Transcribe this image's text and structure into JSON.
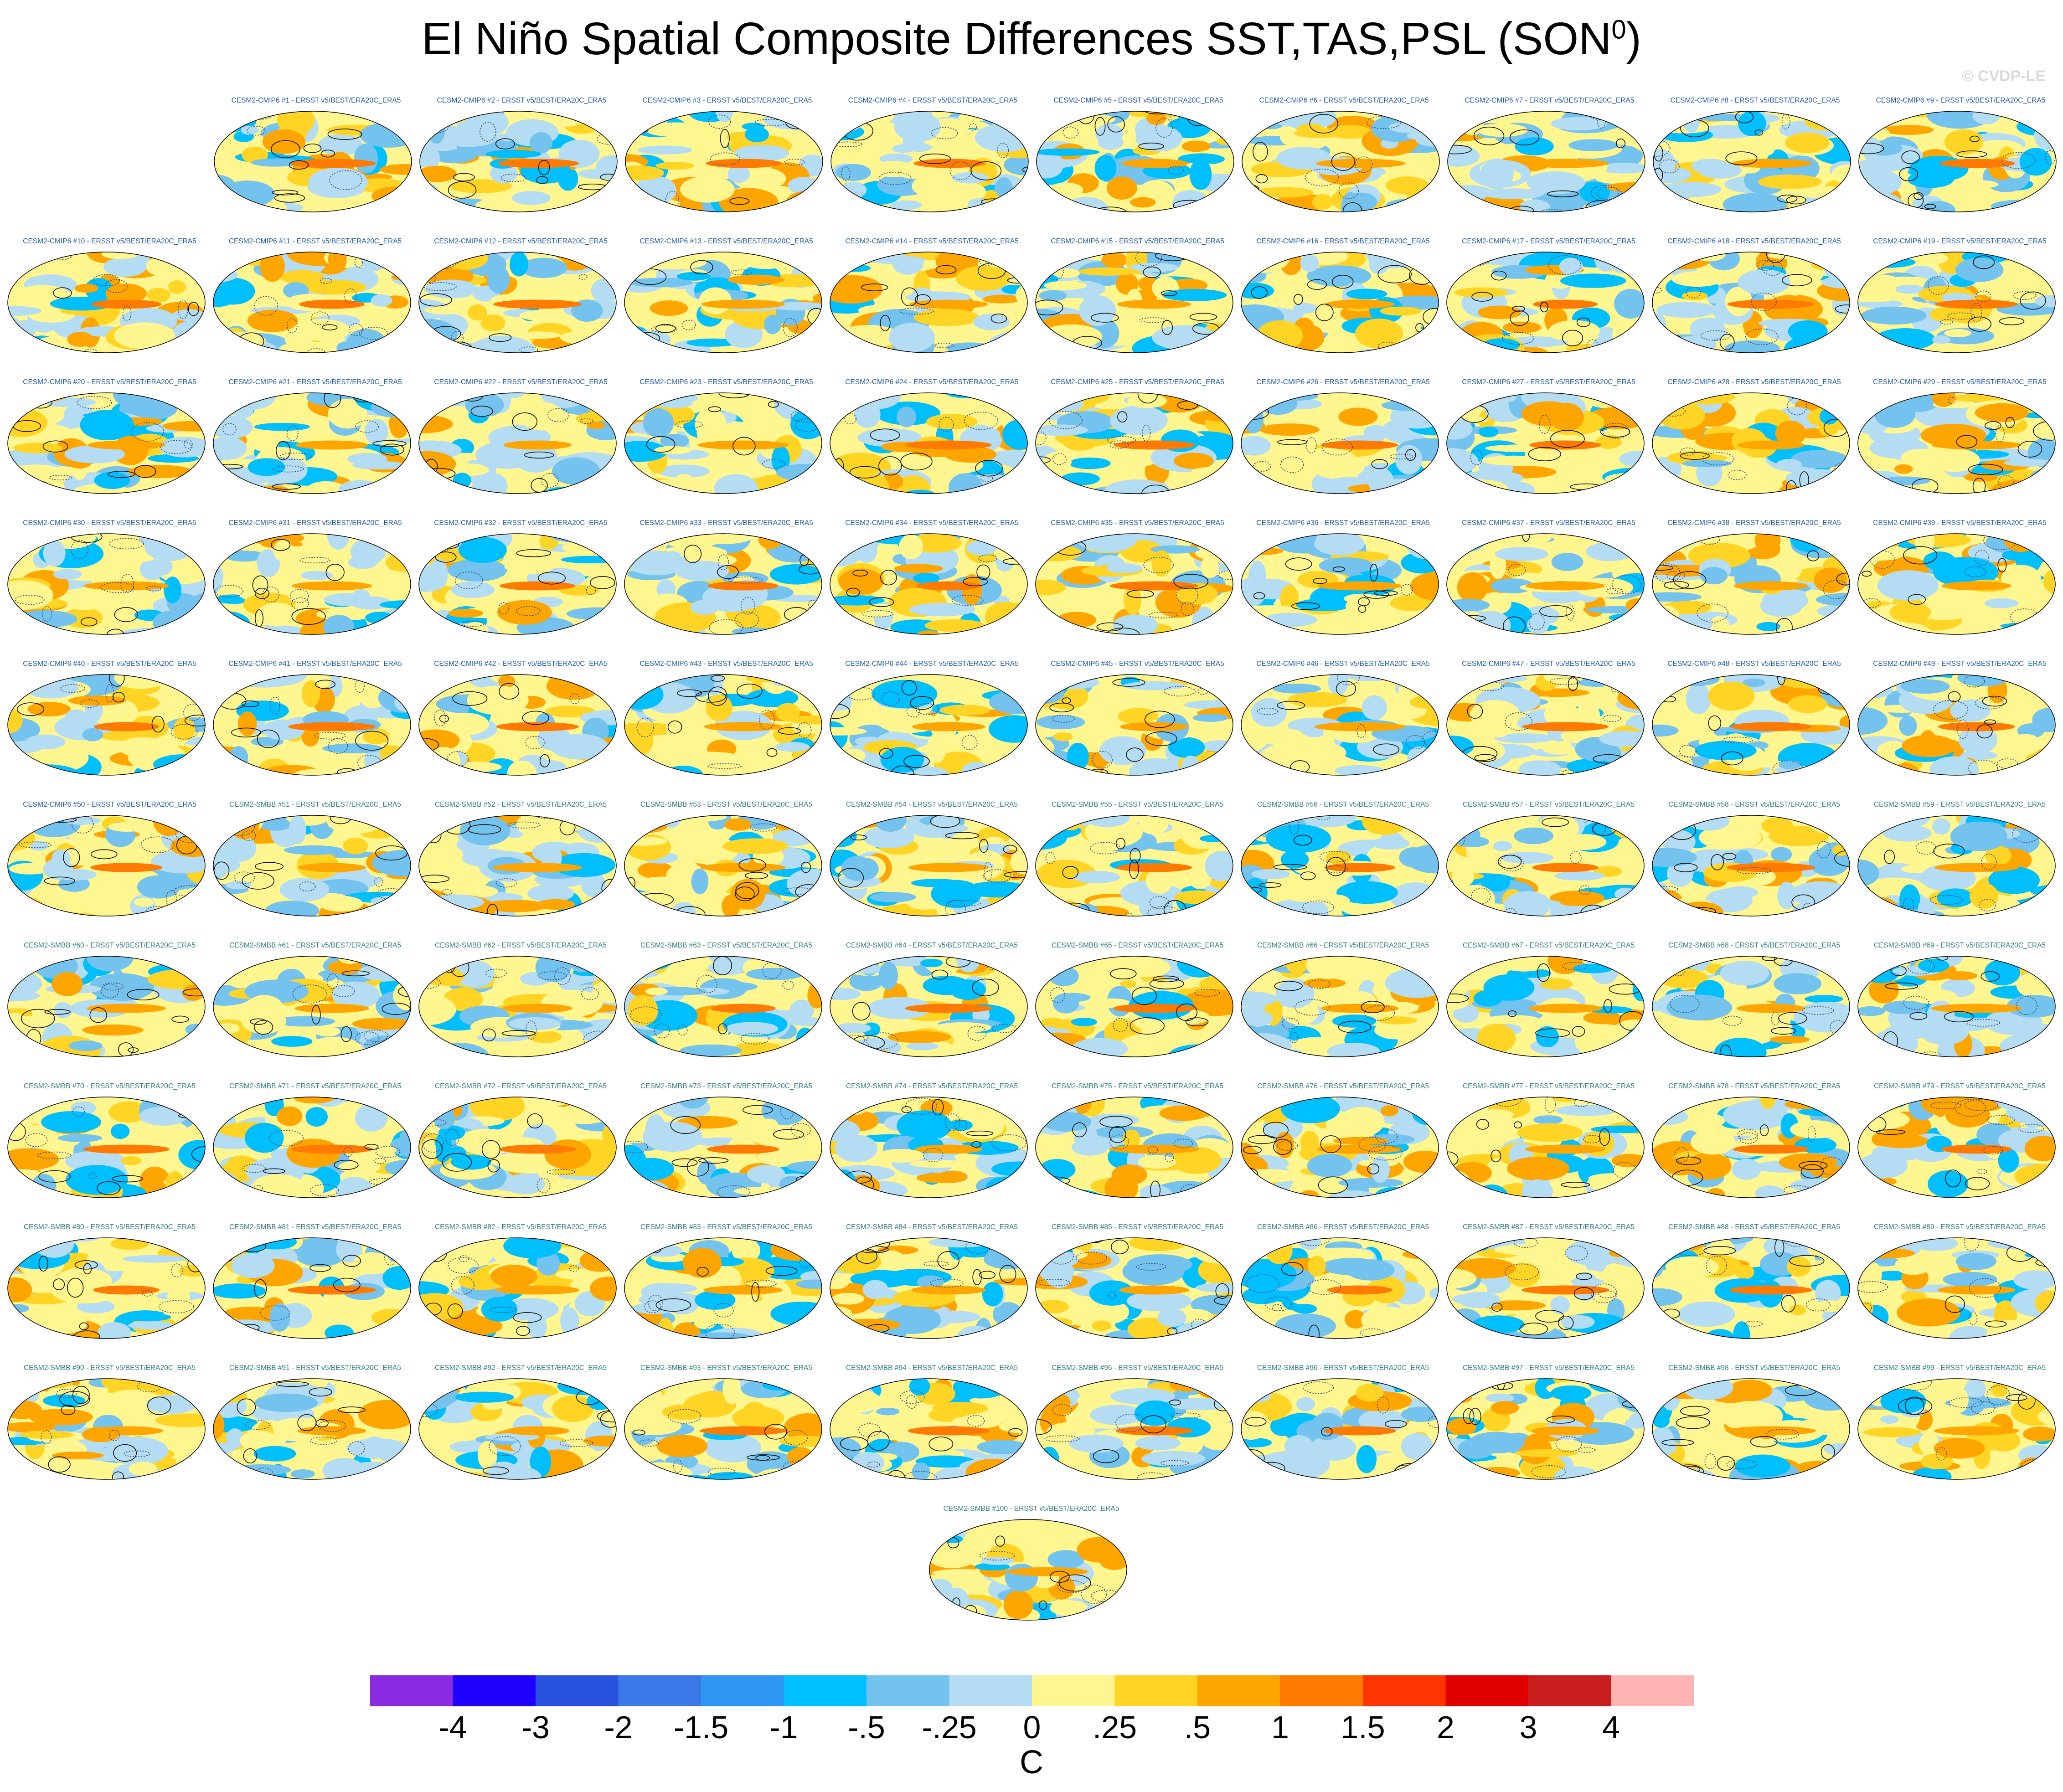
{
  "title": "El Niño Spatial Composite Differences SST,TAS,PSL (SON",
  "title_superscript": "0",
  "title_suffix": ")",
  "watermark": "© CVDP-LE",
  "panel_title_colors": {
    "CESM2-CMIP6": "#1f5aa8",
    "CESM2-SMBB": "#2f7d7d"
  },
  "panel_titles": [
    "CESM2-CMIP6 #1 - ERSST v5/BEST/ERA20C_ERA5",
    "CESM2-CMIP6 #2 - ERSST v5/BEST/ERA20C_ERA5",
    "CESM2-CMIP6 #3 - ERSST v5/BEST/ERA20C_ERA5",
    "CESM2-CMIP6 #4 - ERSST v5/BEST/ERA20C_ERA5",
    "CESM2-CMIP6 #5 - ERSST v5/BEST/ERA20C_ERA5",
    "CESM2-CMIP6 #6 - ERSST v5/BEST/ERA20C_ERA5",
    "CESM2-CMIP6 #7 - ERSST v5/BEST/ERA20C_ERA5",
    "CESM2-CMIP6 #8 - ERSST v5/BEST/ERA20C_ERA5",
    "CESM2-CMIP6 #9 - ERSST v5/BEST/ERA20C_ERA5",
    "CESM2-CMIP6 #10 - ERSST v5/BEST/ERA20C_ERA5",
    "CESM2-CMIP6 #11 - ERSST v5/BEST/ERA20C_ERA5",
    "CESM2-CMIP6 #12 - ERSST v5/BEST/ERA20C_ERA5",
    "CESM2-CMIP6 #13 - ERSST v5/BEST/ERA20C_ERA5",
    "CESM2-CMIP6 #14 - ERSST v5/BEST/ERA20C_ERA5",
    "CESM2-CMIP6 #15 - ERSST v5/BEST/ERA20C_ERA5",
    "CESM2-CMIP6 #16 - ERSST v5/BEST/ERA20C_ERA5",
    "CESM2-CMIP6 #17 - ERSST v5/BEST/ERA20C_ERA5",
    "CESM2-CMIP6 #18 - ERSST v5/BEST/ERA20C_ERA5",
    "CESM2-CMIP6 #19 - ERSST v5/BEST/ERA20C_ERA5",
    "CESM2-CMIP6 #20 - ERSST v5/BEST/ERA20C_ERA5",
    "CESM2-CMIP6 #21 - ERSST v5/BEST/ERA20C_ERA5",
    "CESM2-CMIP6 #22 - ERSST v5/BEST/ERA20C_ERA5",
    "CESM2-CMIP6 #23 - ERSST v5/BEST/ERA20C_ERA5",
    "CESM2-CMIP6 #24 - ERSST v5/BEST/ERA20C_ERA5",
    "CESM2-CMIP6 #25 - ERSST v5/BEST/ERA20C_ERA5",
    "CESM2-CMIP6 #26 - ERSST v5/BEST/ERA20C_ERA5",
    "CESM2-CMIP6 #27 - ERSST v5/BEST/ERA20C_ERA5",
    "CESM2-CMIP6 #28 - ERSST v5/BEST/ERA20C_ERA5",
    "CESM2-CMIP6 #29 - ERSST v5/BEST/ERA20C_ERA5",
    "CESM2-CMIP6 #30 - ERSST v5/BEST/ERA20C_ERA5",
    "CESM2-CMIP6 #31 - ERSST v5/BEST/ERA20C_ERA5",
    "CESM2-CMIP6 #32 - ERSST v5/BEST/ERA20C_ERA5",
    "CESM2-CMIP6 #33 - ERSST v5/BEST/ERA20C_ERA5",
    "CESM2-CMIP6 #34 - ERSST v5/BEST/ERA20C_ERA5",
    "CESM2-CMIP6 #35 - ERSST v5/BEST/ERA20C_ERA5",
    "CESM2-CMIP6 #36 - ERSST v5/BEST/ERA20C_ERA5",
    "CESM2-CMIP6 #37 - ERSST v5/BEST/ERA20C_ERA5",
    "CESM2-CMIP6 #38 - ERSST v5/BEST/ERA20C_ERA5",
    "CESM2-CMIP6 #39 - ERSST v5/BEST/ERA20C_ERA5",
    "CESM2-CMIP6 #40 - ERSST v5/BEST/ERA20C_ERA5",
    "CESM2-CMIP6 #41 - ERSST v5/BEST/ERA20C_ERA5",
    "CESM2-CMIP6 #42 - ERSST v5/BEST/ERA20C_ERA5",
    "CESM2-CMIP6 #43 - ERSST v5/BEST/ERA20C_ERA5",
    "CESM2-CMIP6 #44 - ERSST v5/BEST/ERA20C_ERA5",
    "CESM2-CMIP6 #45 - ERSST v5/BEST/ERA20C_ERA5",
    "CESM2-CMIP6 #46 - ERSST v5/BEST/ERA20C_ERA5",
    "CESM2-CMIP6 #47 - ERSST v5/BEST/ERA20C_ERA5",
    "CESM2-CMIP6 #48 - ERSST v5/BEST/ERA20C_ERA5",
    "CESM2-CMIP6 #49 - ERSST v5/BEST/ERA20C_ERA5",
    "CESM2-CMIP6 #50 - ERSST v5/BEST/ERA20C_ERA5",
    "CESM2-SMBB #51 - ERSST v5/BEST/ERA20C_ERA5",
    "CESM2-SMBB #52 - ERSST v5/BEST/ERA20C_ERA5",
    "CESM2-SMBB #53 - ERSST v5/BEST/ERA20C_ERA5",
    "CESM2-SMBB #54 - ERSST v5/BEST/ERA20C_ERA5",
    "CESM2-SMBB #55 - ERSST v5/BEST/ERA20C_ERA5",
    "CESM2-SMBB #56 - ERSST v5/BEST/ERA20C_ERA5",
    "CESM2-SMBB #57 - ERSST v5/BEST/ERA20C_ERA5",
    "CESM2-SMBB #58 - ERSST v5/BEST/ERA20C_ERA5",
    "CESM2-SMBB #59 - ERSST v5/BEST/ERA20C_ERA5",
    "CESM2-SMBB #60 - ERSST v5/BEST/ERA20C_ERA5",
    "CESM2-SMBB #61 - ERSST v5/BEST/ERA20C_ERA5",
    "CESM2-SMBB #62 - ERSST v5/BEST/ERA20C_ERA5",
    "CESM2-SMBB #63 - ERSST v5/BEST/ERA20C_ERA5",
    "CESM2-SMBB #64 - ERSST v5/BEST/ERA20C_ERA5",
    "CESM2-SMBB #65 - ERSST v5/BEST/ERA20C_ERA5",
    "CESM2-SMBB #66 - ERSST v5/BEST/ERA20C_ERA5",
    "CESM2-SMBB #67 - ERSST v5/BEST/ERA20C_ERA5",
    "CESM2-SMBB #68 - ERSST v5/BEST/ERA20C_ERA5",
    "CESM2-SMBB #69 - ERSST v5/BEST/ERA20C_ERA5",
    "CESM2-SMBB #70 - ERSST v5/BEST/ERA20C_ERA5",
    "CESM2-SMBB #71 - ERSST v5/BEST/ERA20C_ERA5",
    "CESM2-SMBB #72 - ERSST v5/BEST/ERA20C_ERA5",
    "CESM2-SMBB #73 - ERSST v5/BEST/ERA20C_ERA5",
    "CESM2-SMBB #74 - ERSST v5/BEST/ERA20C_ERA5",
    "CESM2-SMBB #75 - ERSST v5/BEST/ERA20C_ERA5",
    "CESM2-SMBB #76 - ERSST v5/BEST/ERA20C_ERA5",
    "CESM2-SMBB #77 - ERSST v5/BEST/ERA20C_ERA5",
    "CESM2-SMBB #78 - ERSST v5/BEST/ERA20C_ERA5",
    "CESM2-SMBB #79 - ERSST v5/BEST/ERA20C_ERA5",
    "CESM2-SMBB #80 - ERSST v5/BEST/ERA20C_ERA5",
    "CESM2-SMBB #81 - ERSST v5/BEST/ERA20C_ERA5",
    "CESM2-SMBB #82 - ERSST v5/BEST/ERA20C_ERA5",
    "CESM2-SMBB #83 - ERSST v5/BEST/ERA20C_ERA5",
    "CESM2-SMBB #84 - ERSST v5/BEST/ERA20C_ERA5",
    "CESM2-SMBB #85 - ERSST v5/BEST/ERA20C_ERA5",
    "CESM2-SMBB #86 - ERSST v5/BEST/ERA20C_ERA5",
    "CESM2-SMBB #87 - ERSST v5/BEST/ERA20C_ERA5",
    "CESM2-SMBB #88 - ERSST v5/BEST/ERA20C_ERA5",
    "CESM2-SMBB #89 - ERSST v5/BEST/ERA20C_ERA5",
    "CESM2-SMBB #90 - ERSST v5/BEST/ERA20C_ERA5",
    "CESM2-SMBB #91 - ERSST v5/BEST/ERA20C_ERA5",
    "CESM2-SMBB #92 - ERSST v5/BEST/ERA20C_ERA5",
    "CESM2-SMBB #93 - ERSST v5/BEST/ERA20C_ERA5",
    "CESM2-SMBB #94 - ERSST v5/BEST/ERA20C_ERA5",
    "CESM2-SMBB #95 - ERSST v5/BEST/ERA20C_ERA5",
    "CESM2-SMBB #96 - ERSST v5/BEST/ERA20C_ERA5",
    "CESM2-SMBB #97 - ERSST v5/BEST/ERA20C_ERA5",
    "CESM2-SMBB #98 - ERSST v5/BEST/ERA20C_ERA5",
    "CESM2-SMBB #99 - ERSST v5/BEST/ERA20C_ERA5",
    "CESM2-SMBB #100 - ERSST v5/BEST/ERA20C_ERA5"
  ],
  "chart_data": {
    "type": "heatmap",
    "projection": "global robinson maps, one per ensemble member",
    "shaded_fields": "SST/TAS composite difference (shading)",
    "contoured_field": "PSL composite difference (contours; solid = positive, dashed = negative)",
    "colorbar": {
      "levels": [
        -4,
        -3,
        -2,
        -1.5,
        -1,
        -0.5,
        -0.25,
        0,
        0.25,
        0.5,
        1,
        1.5,
        2,
        3,
        4
      ],
      "tick_labels": [
        "-4",
        "-3",
        "-2",
        "-1.5",
        "-1",
        "-.5",
        "-.25",
        "0",
        ".25",
        ".5",
        "1",
        "1.5",
        "2",
        "3",
        "4"
      ],
      "colors": [
        "#8a2be2",
        "#1f00ff",
        "#2a52e0",
        "#3a78e8",
        "#2f96f4",
        "#00bfff",
        "#74c2ee",
        "#b4dcf2",
        "#fff68f",
        "#ffd424",
        "#ffa500",
        "#ff7a00",
        "#ff3500",
        "#e00000",
        "#c81e1e",
        "#ffb4b4"
      ],
      "units": "C"
    }
  }
}
